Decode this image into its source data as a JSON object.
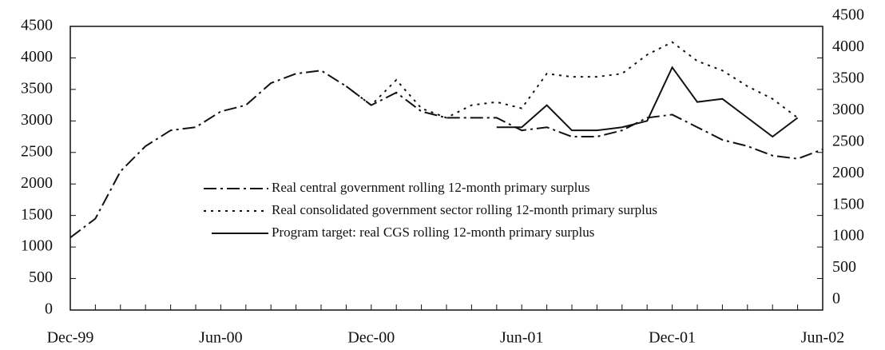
{
  "chart_data": {
    "type": "line",
    "categories": [
      "Dec-99",
      null,
      null,
      null,
      null,
      null,
      "Jun-00",
      null,
      null,
      null,
      null,
      null,
      "Dec-00",
      null,
      null,
      null,
      null,
      null,
      "Jun-01",
      null,
      null,
      null,
      null,
      null,
      "Dec-01",
      null,
      null,
      null,
      null,
      null,
      "Jun-02"
    ],
    "series": [
      {
        "name": "Real central government rolling 12-month primary surplus",
        "color": "#111111",
        "dash": "dashdot",
        "values": [
          1150,
          1450,
          2200,
          2600,
          2850,
          2900,
          3150,
          3250,
          3600,
          3750,
          3800,
          3550,
          3250,
          3450,
          3150,
          3050,
          3050,
          3050,
          2850,
          2900,
          2750,
          2750,
          2850,
          3050,
          3100,
          2900,
          2700,
          2600,
          2450,
          2400,
          2550
        ]
      },
      {
        "name": "Real consolidated government sector rolling 12-month primary surplus",
        "color": "#111111",
        "dash": "dotted",
        "values": [
          null,
          null,
          null,
          null,
          null,
          null,
          null,
          null,
          null,
          null,
          null,
          3550,
          3250,
          3650,
          3200,
          3050,
          3250,
          3300,
          3200,
          3750,
          3700,
          3700,
          3750,
          4050,
          4250,
          3950,
          3800,
          3550,
          3350,
          3050,
          null
        ]
      },
      {
        "name": "Program target: real CGS rolling 12-month primary surplus",
        "color": "#111111",
        "dash": "solid",
        "values": [
          null,
          null,
          null,
          null,
          null,
          null,
          null,
          null,
          null,
          null,
          null,
          null,
          null,
          null,
          null,
          null,
          null,
          2900,
          2900,
          3250,
          2850,
          2850,
          2900,
          3000,
          3850,
          3300,
          3350,
          3050,
          2750,
          3050,
          null
        ]
      }
    ],
    "ylim": [
      0,
      4500
    ],
    "yticks": [
      0,
      500,
      1000,
      1500,
      2000,
      2500,
      3000,
      3500,
      4000,
      4500
    ],
    "y2lim": [
      0,
      4500
    ],
    "y2ticks": [
      0,
      500,
      1000,
      1500,
      2000,
      2500,
      3000,
      3500,
      4000,
      4500
    ],
    "grid": false
  }
}
